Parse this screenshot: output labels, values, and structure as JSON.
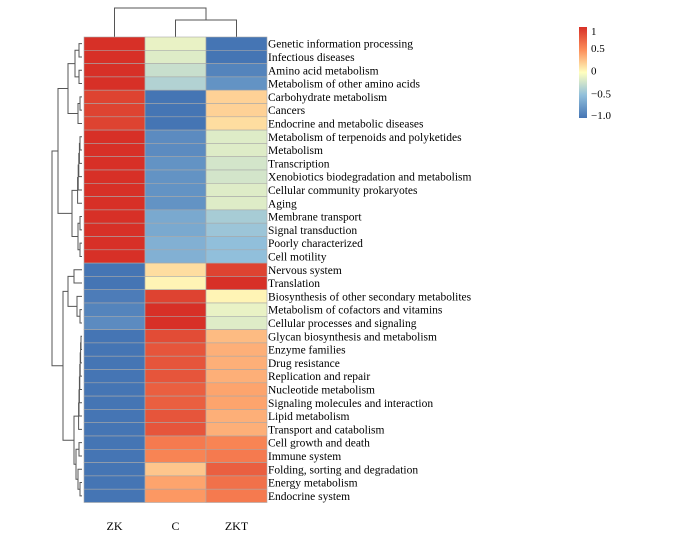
{
  "chart_data": {
    "type": "heatmap",
    "columns": [
      "ZK",
      "C",
      "ZKT"
    ],
    "rows": [
      "Genetic information processing",
      "Infectious diseases",
      "Amino acid metabolism",
      "Metabolism of other amino acids",
      "Carbohydrate metabolism",
      "Cancers",
      "Endocrine and metabolic diseases",
      "Metabolism of terpenoids and polyketides",
      "Metabolism",
      "Transcription",
      "Xenobiotics biodegradation and metabolism",
      "Cellular community prokaryotes",
      "Aging",
      "Membrane transport",
      "Signal transduction",
      "Poorly characterized",
      "Cell motility",
      "Nervous system",
      "Translation",
      "Biosynthesis of other secondary metabolites",
      "Metabolism of cofactors and vitamins",
      "Cellular processes and signaling",
      "Glycan biosynthesis and metabolism",
      "Enzyme families",
      "Drug resistance",
      "Replication and repair",
      "Nucleotide metabolism",
      "Signaling molecules and interaction",
      "Lipid metabolism",
      "Transport and catabolism",
      "Cell growth and death",
      "Immune system",
      "Folding, sorting and degradation",
      "Energy metabolism",
      "Endocrine system"
    ],
    "values": [
      [
        1.15,
        -0.1,
        -1.05
      ],
      [
        1.15,
        -0.15,
        -1.0
      ],
      [
        1.15,
        -0.25,
        -0.9
      ],
      [
        1.15,
        -0.35,
        -0.8
      ],
      [
        0.9,
        -1.1,
        0.2
      ],
      [
        0.9,
        -1.1,
        0.2
      ],
      [
        0.9,
        -1.05,
        0.15
      ],
      [
        1.1,
        -0.85,
        -0.15
      ],
      [
        1.1,
        -0.85,
        -0.15
      ],
      [
        1.1,
        -0.8,
        -0.2
      ],
      [
        1.1,
        -0.8,
        -0.2
      ],
      [
        1.1,
        -0.8,
        -0.15
      ],
      [
        1.1,
        -0.8,
        -0.15
      ],
      [
        1.15,
        -0.65,
        -0.4
      ],
      [
        1.15,
        -0.65,
        -0.45
      ],
      [
        1.15,
        -0.6,
        -0.5
      ],
      [
        1.15,
        -0.6,
        -0.5
      ],
      [
        -1.1,
        0.15,
        0.9
      ],
      [
        -1.05,
        0.05,
        1.05
      ],
      [
        -0.95,
        0.9,
        0.05
      ],
      [
        -0.9,
        1.05,
        -0.1
      ],
      [
        -0.85,
        1.05,
        -0.15
      ],
      [
        -1.15,
        0.85,
        0.3
      ],
      [
        -1.15,
        0.8,
        0.35
      ],
      [
        -1.15,
        0.8,
        0.35
      ],
      [
        -1.15,
        0.8,
        0.35
      ],
      [
        -1.15,
        0.75,
        0.4
      ],
      [
        -1.15,
        0.75,
        0.4
      ],
      [
        -1.15,
        0.8,
        0.35
      ],
      [
        -1.15,
        0.8,
        0.35
      ],
      [
        -1.15,
        0.6,
        0.55
      ],
      [
        -1.15,
        0.55,
        0.6
      ],
      [
        -1.15,
        0.25,
        0.75
      ],
      [
        -1.15,
        0.4,
        0.65
      ],
      [
        -1.15,
        0.45,
        0.6
      ]
    ],
    "color_scale": {
      "range": [
        -1.0,
        1.0
      ],
      "ticks": [
        1,
        0.5,
        0,
        -0.5,
        -1.0
      ],
      "tick_labels": [
        "1",
        "0.5",
        "0",
        "−0.5",
        "−1.0"
      ],
      "colors": [
        "#4575b4",
        "#91bfdb",
        "#ffffbf",
        "#fc8d59",
        "#d73027"
      ]
    },
    "dendrograms": {
      "rows": true,
      "columns": true
    },
    "legend": "top-right"
  }
}
